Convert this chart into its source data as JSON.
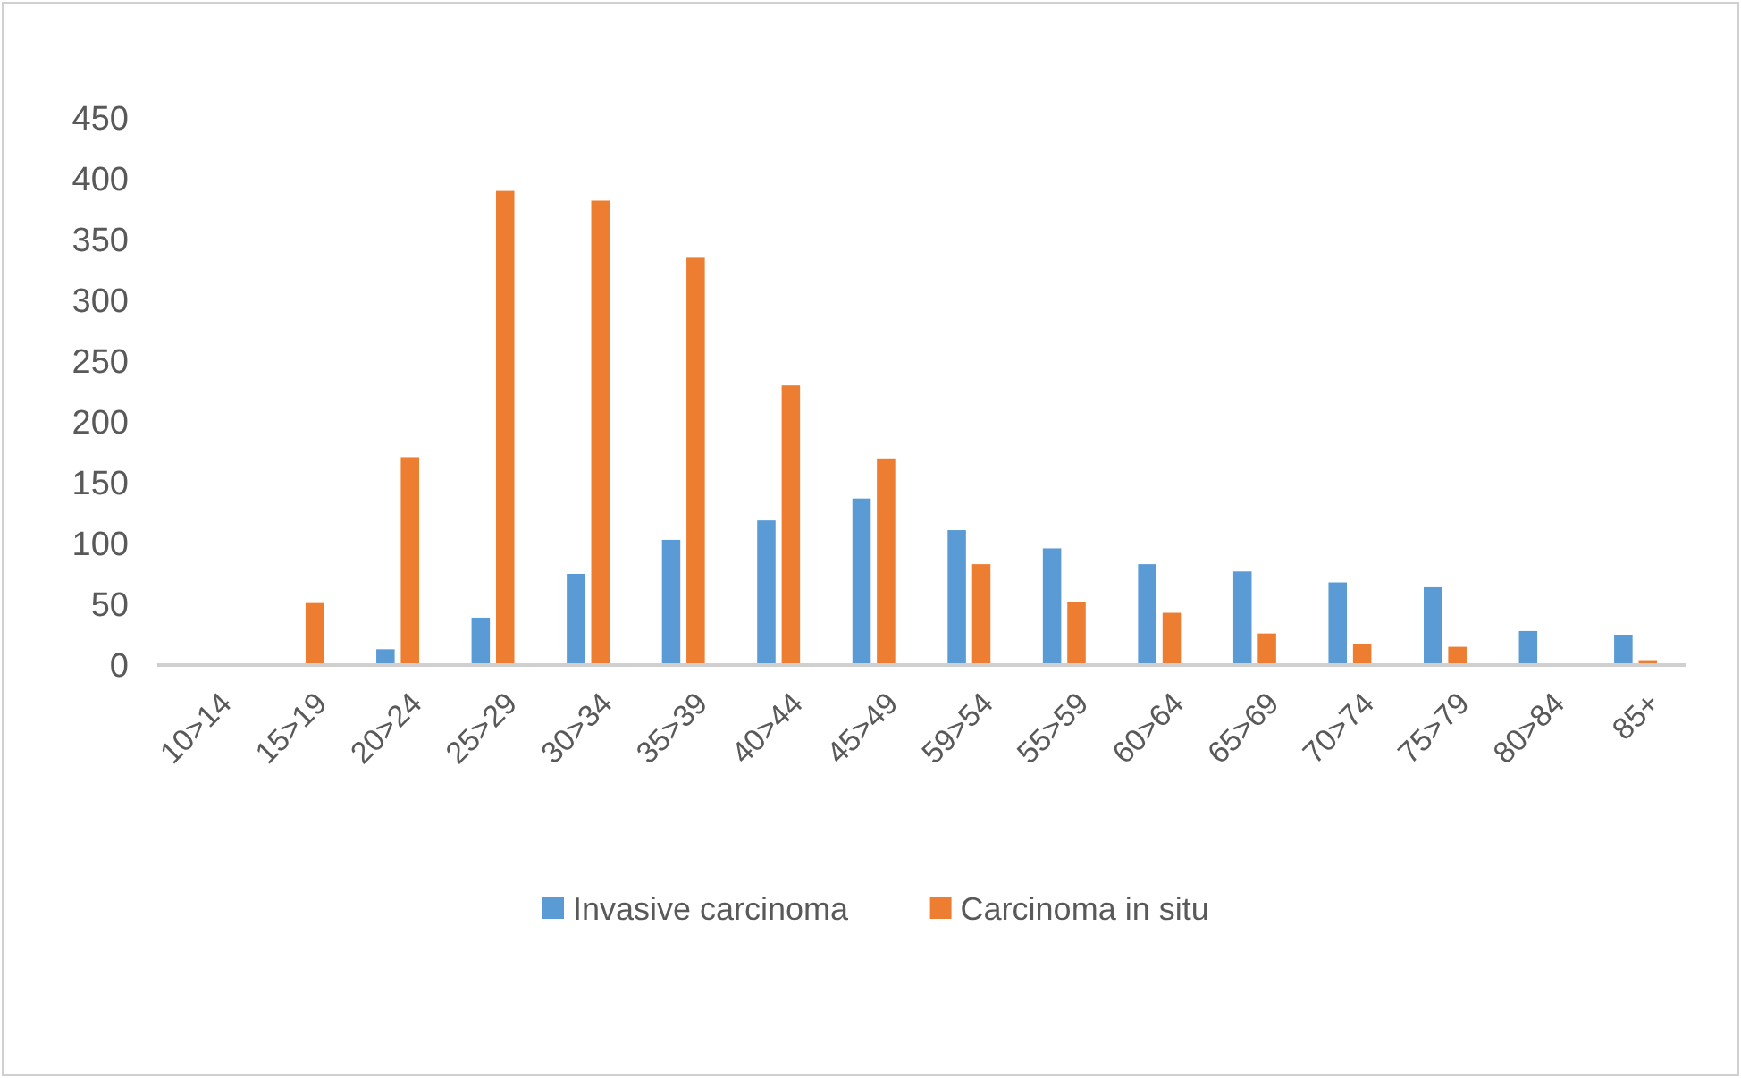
{
  "chart_data": {
    "type": "bar",
    "categories": [
      "10>14",
      "15>19",
      "20>24",
      "25>29",
      "30>34",
      "35>39",
      "40>44",
      "45>49",
      "59>54",
      "55>59",
      "60>64",
      "65>69",
      "70>74",
      "75>79",
      "80>84",
      "85+"
    ],
    "series": [
      {
        "name": "Invasive carcinoma",
        "color": "#5b9bd5",
        "values": [
          0,
          0,
          13,
          39,
          75,
          103,
          119,
          137,
          111,
          96,
          83,
          77,
          68,
          64,
          28,
          25
        ]
      },
      {
        "name": "Carcinoma in situ",
        "color": "#ed7d31",
        "values": [
          0,
          51,
          171,
          390,
          382,
          335,
          230,
          170,
          83,
          52,
          43,
          26,
          17,
          15,
          0,
          4
        ]
      }
    ],
    "ylim": [
      0,
      450
    ],
    "yticks": [
      0,
      50,
      100,
      150,
      200,
      250,
      300,
      350,
      400,
      450
    ],
    "grid": false,
    "legend": "bottom"
  }
}
